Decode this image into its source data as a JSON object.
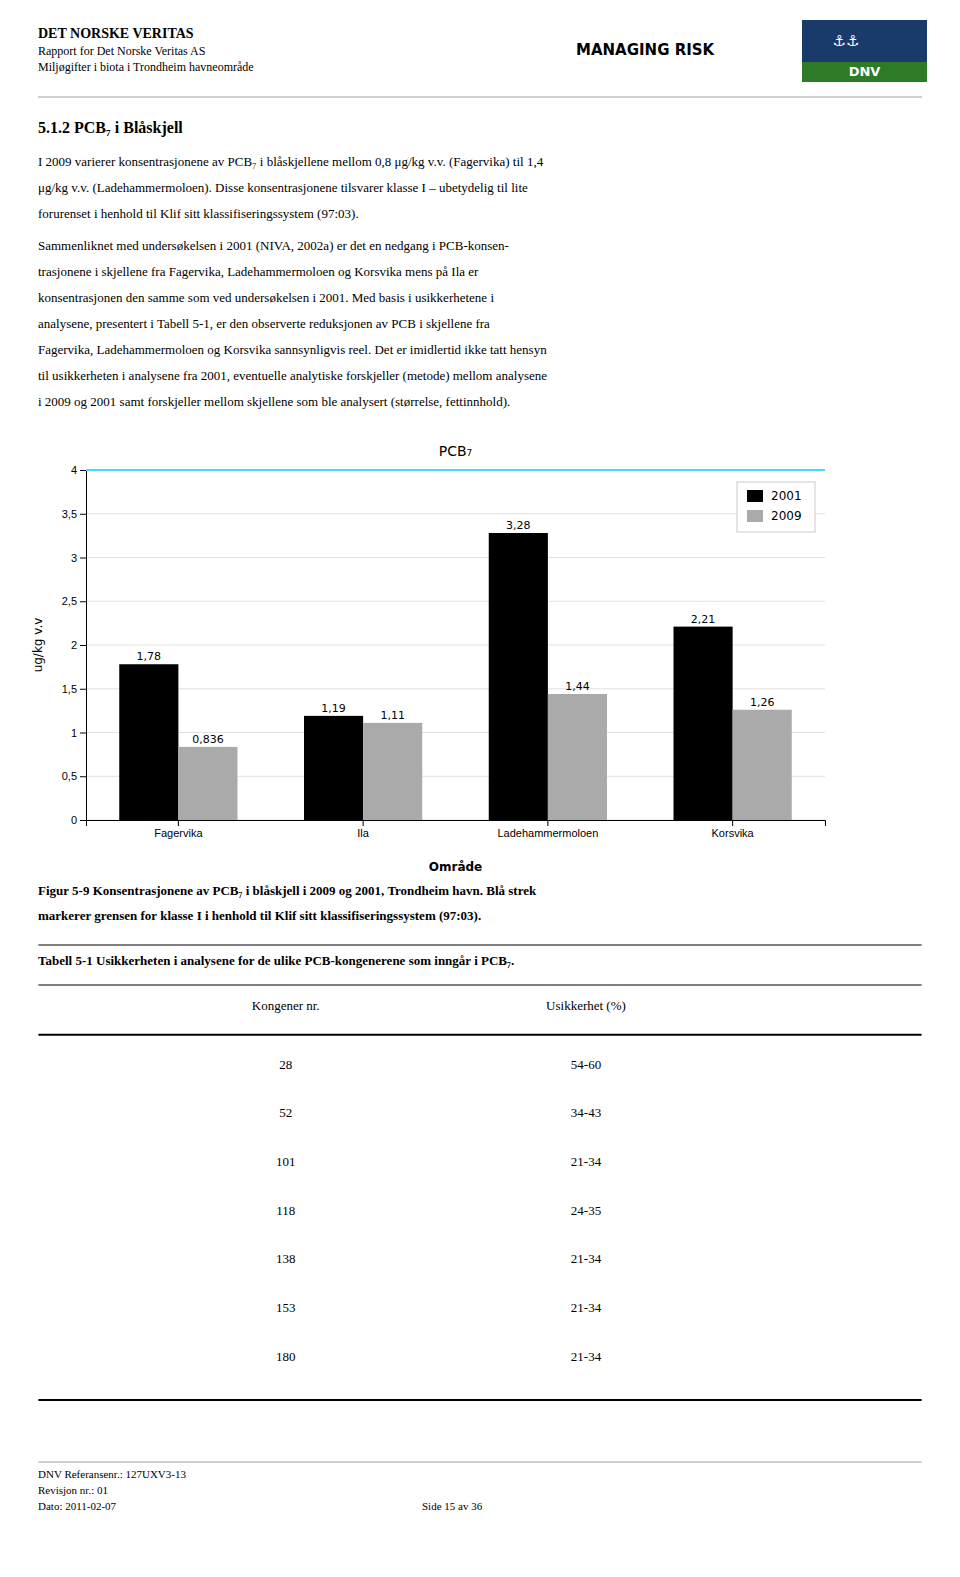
{
  "chart_data": {
    "type": "bar",
    "title": "PCB₇",
    "x_label": "Område",
    "y_label": "ug/kg v.v",
    "categories": [
      "Fagervika",
      "Ila",
      "Ladehammermoloen",
      "Korsvika"
    ],
    "series": [
      {
        "name": "2001",
        "color": "#000000",
        "values": [
          1.78,
          1.19,
          3.28,
          2.21
        ],
        "value_labels": [
          "1,78",
          "1,19",
          "3,28",
          "2,21"
        ]
      },
      {
        "name": "2009",
        "color": "#aaaaaa",
        "values": [
          0.836,
          1.11,
          1.44,
          1.26
        ],
        "value_labels": [
          "0,836",
          "1,11",
          "1,44",
          "1,26"
        ]
      }
    ],
    "ylim": [
      0,
      4
    ],
    "yticks": [
      0,
      {
        "value": 0.5,
        "label": "0,5"
      },
      1,
      {
        "value": 1.5,
        "label": "1,5"
      },
      2,
      {
        "value": 2.5,
        "label": "2,5"
      },
      3,
      {
        "value": 3.5,
        "label": "3,5"
      },
      4
    ],
    "grid": true,
    "legend": "upper right",
    "data_labels": true,
    "annotations": [
      {
        "type": "hline",
        "y": 4,
        "color": "#4dd9ff"
      }
    ]
  },
  "page": {
    "header": [
      "DET NORSKE VERITAS",
      "Rapport for Det Norske Veritas AS",
      "Miljøgifter i biota i Trondheim havneområde"
    ],
    "tagline": "MANAGING RISK",
    "logo": [
      "⚓⚓",
      "DNV"
    ],
    "section_title": "5.1.2   PCB₇ i Blåskjell",
    "paragraphs": [
      [
        "I 2009 varierer konsentrasjonene av PCB₇ i blåskjellene mellom 0,8 μg/kg v.v. (Fagervika) til 1,4",
        "μg/kg v.v. (Ladehammermoloen). Disse konsentrasjonene tilsvarer klasse I – ubetydelig til lite",
        "forurenset i henhold til Klif sitt klassifiseringssystem (97:03)."
      ],
      [
        "Sammenliknet med undersøkelsen i 2001 (NIVA, 2002a) er det en nedgang i PCB-konsen-",
        "trasjonene i skjellene fra Fagervika, Ladehammermoloen og Korsvika mens på Ila er",
        "konsentrasjonen den samme som ved undersøkelsen i 2001. Med basis i usikkerhetene i",
        "analysene, presentert i Tabell 5-1, er den observerte reduksjonen av PCB i skjellene fra",
        "Fagervika, Ladehammermoloen og Korsvika sannsynligvis reel. Det er imidlertid ikke tatt hensyn",
        "til usikkerheten i analysene fra 2001, eventuelle analytiske forskjeller (metode) mellom analysene",
        "i 2009 og 2001 samt forskjeller mellom skjellene som ble analysert (størrelse, fettinnhold)."
      ]
    ],
    "caption": [
      "Figur 5-9 Konsentrasjonene av PCB₇ i blåskjell i 2009 og 2001, Trondheim havn. Blå strek",
      "markerer grensen for klasse I i henhold til Klif sitt klassifiseringssystem (97:03)."
    ],
    "table": {
      "title": "Tabell 5-1 Usikkerheten i analysene for de ulike PCB-kongenerene som inngår i PCB₇.",
      "columns": [
        "Kongener nr.",
        "Usikkerhet (%)"
      ],
      "rows": [
        [
          "28",
          "54-60"
        ],
        [
          "52",
          "34-43"
        ],
        [
          "101",
          "21-34"
        ],
        [
          "118",
          "24-35"
        ],
        [
          "138",
          "21-34"
        ],
        [
          "153",
          "21-34"
        ],
        [
          "180",
          "21-34"
        ]
      ]
    },
    "footer": [
      "DNV Referansenr.: 127UXV3-13",
      "Revisjon nr.: 01",
      "Dato: 2011-02-07",
      "Side 15 av 36"
    ]
  }
}
